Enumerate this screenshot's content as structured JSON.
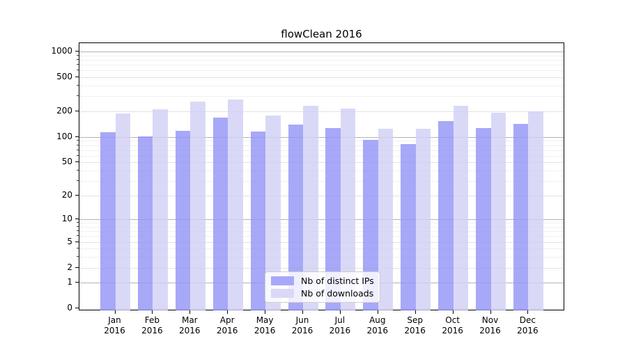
{
  "chart_data": {
    "type": "bar",
    "title": "flowClean 2016",
    "categories": [
      {
        "month": "Jan",
        "year": "2016"
      },
      {
        "month": "Feb",
        "year": "2016"
      },
      {
        "month": "Mar",
        "year": "2016"
      },
      {
        "month": "Apr",
        "year": "2016"
      },
      {
        "month": "May",
        "year": "2016"
      },
      {
        "month": "Jun",
        "year": "2016"
      },
      {
        "month": "Jul",
        "year": "2016"
      },
      {
        "month": "Aug",
        "year": "2016"
      },
      {
        "month": "Sep",
        "year": "2016"
      },
      {
        "month": "Oct",
        "year": "2016"
      },
      {
        "month": "Nov",
        "year": "2016"
      },
      {
        "month": "Dec",
        "year": "2016"
      }
    ],
    "series": [
      {
        "name": "Nb of distinct IPs",
        "color": "#a8a8f8",
        "values": [
          113,
          102,
          118,
          170,
          115,
          139,
          128,
          93,
          83,
          153,
          128,
          143
        ]
      },
      {
        "name": "Nb of downloads",
        "color": "#d9d9f7",
        "values": [
          190,
          210,
          260,
          273,
          178,
          232,
          215,
          124,
          125,
          233,
          192,
          200
        ]
      }
    ],
    "y_axis": {
      "scale": "log1p",
      "ticks": [
        0,
        1,
        2,
        5,
        10,
        20,
        50,
        100,
        200,
        500,
        1000
      ],
      "decade_ticks": [
        1,
        10,
        100,
        1000
      ],
      "minor_ticks": [
        3,
        4,
        6,
        7,
        8,
        9,
        30,
        40,
        60,
        70,
        80,
        90,
        300,
        400,
        600,
        700,
        800,
        900
      ],
      "ylim": [
        0,
        1250
      ]
    },
    "grid": "horizontal major+minor",
    "legend_position": "inside lower center",
    "colors": {
      "grid_decade": "#b3b3b3",
      "grid_major": "#e2e2e2",
      "grid_minor": "#f0f0f0",
      "spine": "#000000"
    }
  }
}
